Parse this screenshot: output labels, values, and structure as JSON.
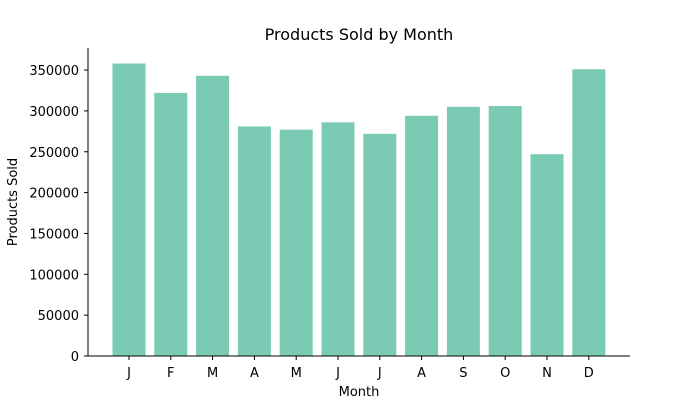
{
  "chart_data": {
    "type": "bar",
    "title": "Products Sold by Month",
    "xlabel": "Month",
    "ylabel": "Products Sold",
    "categories": [
      "J",
      "F",
      "M",
      "A",
      "M",
      "J",
      "J",
      "A",
      "S",
      "O",
      "N",
      "D"
    ],
    "values": [
      358000,
      322000,
      343000,
      281000,
      277000,
      286000,
      272000,
      294000,
      305000,
      306000,
      247000,
      351000
    ],
    "ylim": [
      0,
      377000
    ],
    "yticks": [
      0,
      50000,
      100000,
      150000,
      200000,
      250000,
      300000,
      350000
    ],
    "ytick_labels": [
      "0",
      "50000",
      "100000",
      "150000",
      "200000",
      "250000",
      "300000",
      "350000"
    ],
    "grid": false,
    "bar_color": "#7bcbb4"
  }
}
